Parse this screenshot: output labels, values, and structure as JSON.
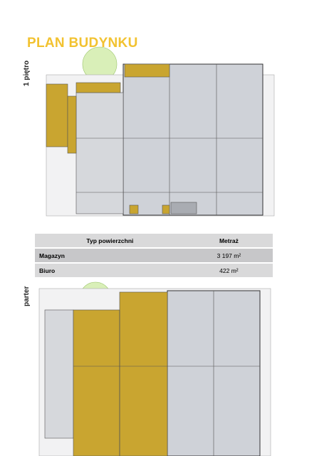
{
  "header": {
    "title": "PLAN BUDYNKU"
  },
  "floors": [
    {
      "label": "1 piętro"
    },
    {
      "label": "parter"
    }
  ],
  "table": {
    "header": [
      "Typ powierzchni",
      "Metraż"
    ],
    "rows": [
      [
        "Magazyn",
        "3 197 m²"
      ],
      [
        "Biuro",
        "422 m²"
      ]
    ]
  }
}
